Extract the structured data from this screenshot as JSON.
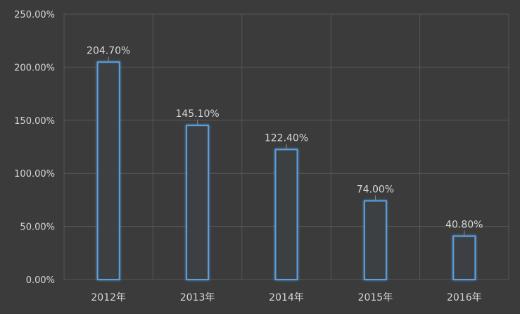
{
  "chart_data": {
    "type": "bar",
    "categories": [
      "2012年",
      "2013年",
      "2014年",
      "2015年",
      "2016年"
    ],
    "values": [
      204.7,
      145.1,
      122.4,
      74.0,
      40.8
    ],
    "value_labels": [
      "204.70%",
      "145.10%",
      "122.40%",
      "74.00%",
      "40.80%"
    ],
    "ylim": [
      0,
      250
    ],
    "y_ticks": [
      0,
      50,
      100,
      150,
      200,
      250
    ],
    "y_tick_labels": [
      "0.00%",
      "50.00%",
      "100.00%",
      "150.00%",
      "200.00%",
      "250.00%"
    ],
    "title": "",
    "xlabel": "",
    "ylabel": "",
    "grid": true,
    "legend": "none",
    "colors": {
      "background": "#3b3b3b",
      "grid": "#575757",
      "bar_stroke": "#5aa0e0",
      "bar_fill": "#3d3f42",
      "text": "#d7d7d7"
    }
  }
}
